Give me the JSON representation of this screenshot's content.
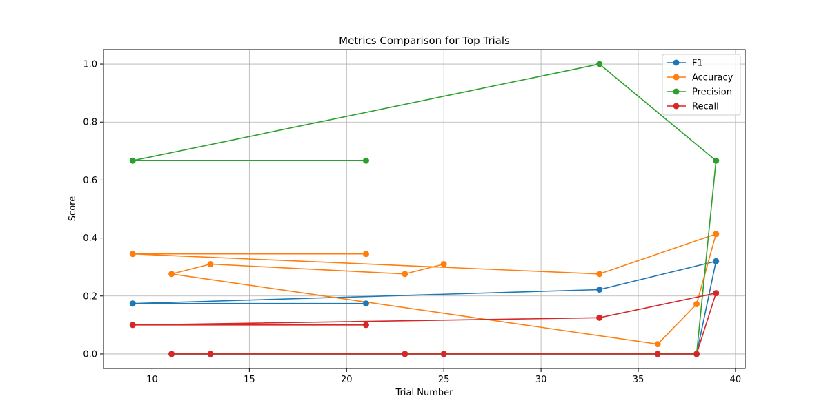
{
  "chart_data": {
    "type": "line",
    "title": "Metrics Comparison for Top Trials",
    "xlabel": "Trial Number",
    "ylabel": "Score",
    "xlim": [
      7.5,
      40.5
    ],
    "ylim": [
      -0.05,
      1.05
    ],
    "xticks": [
      10,
      15,
      20,
      25,
      30,
      35,
      40
    ],
    "yticks": [
      0.0,
      0.2,
      0.4,
      0.6,
      0.8,
      1.0
    ],
    "xtick_labels": [
      "10",
      "15",
      "20",
      "25",
      "30",
      "35",
      "40"
    ],
    "ytick_labels": [
      "0.0",
      "0.2",
      "0.4",
      "0.6",
      "0.8",
      "1.0"
    ],
    "grid": true,
    "legend_position": "top-right",
    "x": [
      21,
      9,
      33,
      39,
      38,
      36,
      11,
      13,
      23,
      25
    ],
    "series": [
      {
        "name": "F1",
        "color": "#1f77b4",
        "marker": "circle",
        "values": [
          0.174,
          0.174,
          0.222,
          0.32,
          0.0,
          0.0,
          0.0,
          0.0,
          0.0,
          0.0
        ]
      },
      {
        "name": "Accuracy",
        "color": "#ff7f0e",
        "marker": "circle",
        "values": [
          0.345,
          0.345,
          0.276,
          0.414,
          0.172,
          0.034,
          0.276,
          0.31,
          0.276,
          0.31
        ]
      },
      {
        "name": "Precision",
        "color": "#2ca02c",
        "marker": "circle",
        "values": [
          0.667,
          0.667,
          1.0,
          0.667,
          0.0,
          0.0,
          0.0,
          0.0,
          0.0,
          0.0
        ]
      },
      {
        "name": "Recall",
        "color": "#d62728",
        "marker": "circle",
        "values": [
          0.1,
          0.1,
          0.125,
          0.21,
          0.0,
          0.0,
          0.0,
          0.0,
          0.0,
          0.0
        ]
      }
    ]
  }
}
